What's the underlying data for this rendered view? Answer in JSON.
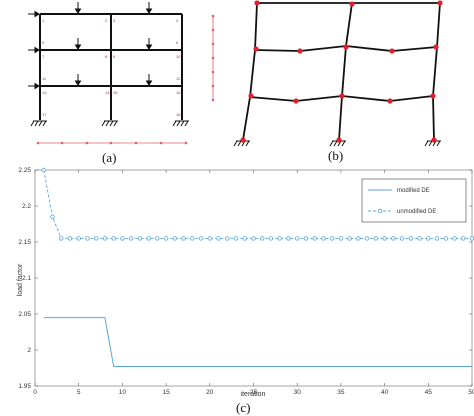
{
  "captions": {
    "a": "(a)",
    "b": "(b)",
    "c": "(c)"
  },
  "colors": {
    "series": "#5aa6dc",
    "hinge": "#e0202a",
    "structure": "#111111"
  },
  "frame_a_numbers": [
    "1",
    "2",
    "3",
    "4",
    "5",
    "6",
    "7",
    "8",
    "9",
    "10",
    "11",
    "12",
    "13",
    "14",
    "15",
    "16",
    "17",
    "18"
  ],
  "chart_data": {
    "type": "line",
    "xlabel": "iteration",
    "ylabel": "load factor",
    "xlim": [
      0,
      50
    ],
    "ylim": [
      1.95,
      2.25
    ],
    "xticks": [
      "0",
      "5",
      "10",
      "15",
      "20",
      "25",
      "30",
      "35",
      "40",
      "45",
      "50"
    ],
    "yticks": [
      "1.95",
      "2",
      "2.05",
      "2.1",
      "2.15",
      "2.2",
      "2.25"
    ],
    "legend_position": "top-right",
    "series": [
      {
        "name": "modified DE",
        "style": "solid",
        "x": [
          1,
          2,
          3,
          4,
          5,
          6,
          7,
          8,
          9,
          10,
          15,
          20,
          25,
          30,
          35,
          40,
          45,
          50
        ],
        "y": [
          2.045,
          2.045,
          2.045,
          2.045,
          2.045,
          2.045,
          2.045,
          2.045,
          1.977,
          1.977,
          1.977,
          1.977,
          1.977,
          1.977,
          1.977,
          1.977,
          1.977,
          1.977
        ]
      },
      {
        "name": "unmodified DE",
        "style": "dashed-circle",
        "x": [
          1,
          2,
          3,
          4,
          5,
          6,
          7,
          8,
          9,
          10,
          11,
          12,
          13,
          14,
          15,
          16,
          17,
          18,
          19,
          20,
          21,
          22,
          23,
          24,
          25,
          26,
          27,
          28,
          29,
          30,
          31,
          32,
          33,
          34,
          35,
          36,
          37,
          38,
          39,
          40,
          41,
          42,
          43,
          44,
          45,
          46,
          47,
          48,
          49,
          50
        ],
        "y": [
          2.25,
          2.185,
          2.155,
          2.155,
          2.155,
          2.155,
          2.155,
          2.155,
          2.155,
          2.155,
          2.155,
          2.155,
          2.155,
          2.155,
          2.155,
          2.155,
          2.155,
          2.155,
          2.155,
          2.155,
          2.155,
          2.155,
          2.155,
          2.155,
          2.155,
          2.155,
          2.155,
          2.155,
          2.155,
          2.155,
          2.155,
          2.155,
          2.155,
          2.155,
          2.155,
          2.155,
          2.155,
          2.155,
          2.155,
          2.155,
          2.155,
          2.155,
          2.155,
          2.155,
          2.155,
          2.155,
          2.155,
          2.155,
          2.155,
          2.155
        ]
      }
    ]
  }
}
